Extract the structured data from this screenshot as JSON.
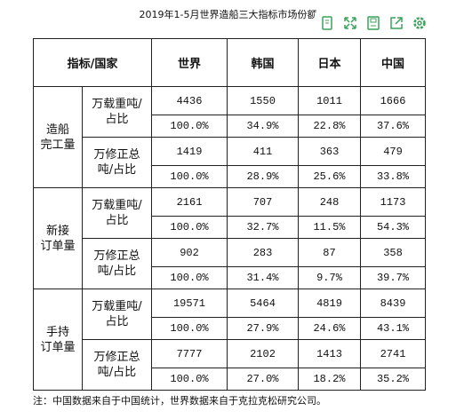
{
  "title": "2019年1-5月世界造船三大指标市场份额",
  "table": {
    "header": [
      "指标/国家",
      "世界",
      "韩国",
      "日本",
      "中国"
    ],
    "groups": [
      {
        "category": [
          "造船",
          "完工量"
        ],
        "metrics": [
          {
            "name": [
              "万载重吨/",
              "占比"
            ],
            "values": [
              4436,
              1550,
              1011,
              1666
            ],
            "shares": [
              "100.0%",
              "34.9%",
              "22.8%",
              "37.6%"
            ]
          },
          {
            "name": [
              "万修正总",
              "吨/占比"
            ],
            "values": [
              1419,
              411,
              363,
              479
            ],
            "shares": [
              "100.0%",
              "28.9%",
              "25.6%",
              "33.8%"
            ]
          }
        ]
      },
      {
        "category": [
          "新接",
          "订单量"
        ],
        "metrics": [
          {
            "name": [
              "万载重吨/",
              "占比"
            ],
            "values": [
              2161,
              707,
              248,
              1173
            ],
            "shares": [
              "100.0%",
              "32.7%",
              "11.5%",
              "54.3%"
            ]
          },
          {
            "name": [
              "万修正总",
              "吨/占比"
            ],
            "values": [
              902,
              283,
              87,
              358
            ],
            "shares": [
              "100.0%",
              "31.4%",
              "9.7%",
              "39.7%"
            ]
          }
        ]
      },
      {
        "category": [
          "手持",
          "订单量"
        ],
        "metrics": [
          {
            "name": [
              "万载重吨/",
              "占比"
            ],
            "values": [
              19571,
              5464,
              4819,
              8439
            ],
            "shares": [
              "100.0%",
              "27.9%",
              "24.6%",
              "43.1%"
            ]
          },
          {
            "name": [
              "万修正总",
              "吨/占比"
            ],
            "values": [
              7777,
              2102,
              1413,
              2741
            ],
            "shares": [
              "100.0%",
              "27.0%",
              "18.2%",
              "35.2%"
            ]
          }
        ]
      }
    ]
  },
  "note": "注：中国数据来自于中国统计，世界数据来自于克拉克松研究公司。"
}
